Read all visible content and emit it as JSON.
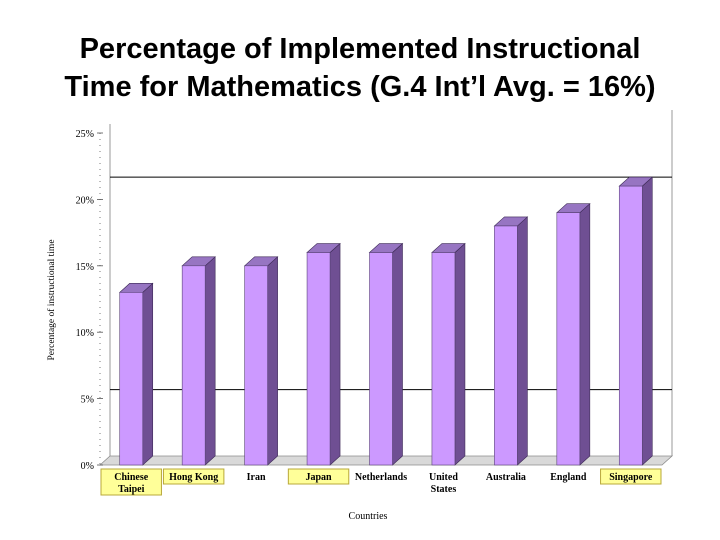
{
  "slide": {
    "title_line1": "Percentage of Implemented Instructional",
    "title_line2": "Time for Mathematics (G.4 Int’l Avg. = 16%)"
  },
  "chart_data": {
    "type": "bar",
    "title": "Percentage of Implemented Instructional Time for Mathematics (G.4 Int’l Avg. = 16%)",
    "xlabel": "Countries",
    "ylabel": "Percentage of instructional time",
    "ylim": [
      0,
      25
    ],
    "yticks": [
      0,
      5,
      10,
      15,
      20,
      25
    ],
    "ytick_labels": [
      "0%",
      "5%",
      "10%",
      "15%",
      "20%",
      "25%"
    ],
    "reference_lines": [
      5,
      21
    ],
    "categories": [
      "Chinese Taipei",
      "Hong Kong",
      "Iran",
      "Japan",
      "Netherlands",
      "United States",
      "Australia",
      "England",
      "Singapore"
    ],
    "category_label_lines": [
      [
        "Chinese",
        "Taipei"
      ],
      [
        "Hong Kong"
      ],
      [
        "Iran"
      ],
      [
        "Japan"
      ],
      [
        "Netherlands"
      ],
      [
        "United",
        "States"
      ],
      [
        "Australia"
      ],
      [
        "England"
      ],
      [
        "Singapore"
      ]
    ],
    "highlighted_categories": [
      "Chinese Taipei",
      "Hong Kong",
      "Japan",
      "Singapore"
    ],
    "values": [
      13,
      15,
      15,
      16,
      16,
      16,
      18,
      19,
      21
    ],
    "grid": false,
    "legend": "none",
    "colors": {
      "bar_front": "#cc99ff",
      "bar_side": "#6f4f93",
      "bar_top": "#9775c2",
      "highlight_fill": "#ffff99",
      "highlight_border": "#b8a83a",
      "floor": "#d9d9d9"
    }
  }
}
